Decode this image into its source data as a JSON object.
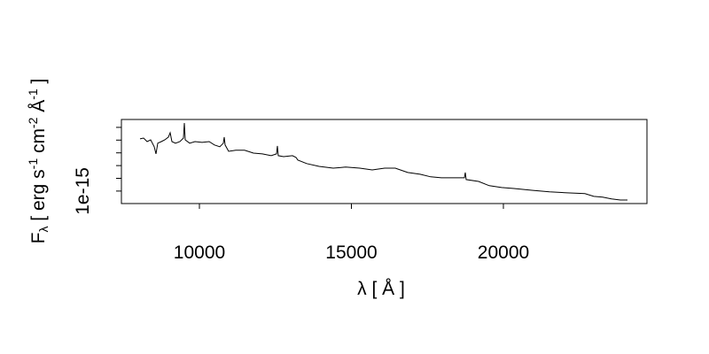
{
  "chart_data": {
    "type": "line",
    "xlabel": "λ [ Å ]",
    "ylabel": [
      "F",
      "λ",
      " [ erg s",
      "-1",
      " cm",
      "-2",
      " Å",
      "-1",
      " ]"
    ],
    "color": "#000000",
    "x": [
      8047,
      8163,
      8280,
      8396,
      8513,
      8571,
      8630,
      8746,
      8863,
      8980,
      9038,
      9096,
      9213,
      9359,
      9475,
      9504,
      9534,
      9679,
      9854,
      10087,
      10321,
      10496,
      10671,
      10787,
      10816,
      10845,
      10962,
      11195,
      11487,
      11778,
      12070,
      12361,
      12536,
      12566,
      12595,
      12770,
      13061,
      13178,
      13237,
      13528,
      13936,
      14402,
      14811,
      15277,
      15685,
      16093,
      16443,
      16851,
      17260,
      17609,
      17959,
      18601,
      18717,
      18747,
      18776,
      19184,
      19534,
      19942,
      20350,
      20933,
      21516,
      22099,
      22682,
      22974,
      23266,
      23557,
      23849,
      24082
    ],
    "values": [
      3.05e-15,
      3.08e-15,
      2.94e-15,
      3.01e-15,
      2.74e-15,
      2.46e-15,
      2.88e-15,
      2.94e-15,
      3.01e-15,
      3.12e-15,
      3.29e-15,
      2.94e-15,
      2.88e-15,
      2.94e-15,
      3.08e-15,
      3.67e-15,
      3.01e-15,
      2.88e-15,
      2.94e-15,
      2.91e-15,
      2.94e-15,
      2.81e-15,
      2.74e-15,
      2.88e-15,
      3.12e-15,
      2.81e-15,
      2.56e-15,
      2.6e-15,
      2.6e-15,
      2.49e-15,
      2.46e-15,
      2.39e-15,
      2.46e-15,
      2.77e-15,
      2.39e-15,
      2.35e-15,
      2.39e-15,
      2.32e-15,
      2.22e-15,
      2.08e-15,
      1.97e-15,
      1.9e-15,
      1.94e-15,
      1.9e-15,
      1.83e-15,
      1.9e-15,
      1.9e-15,
      1.73e-15,
      1.66e-15,
      1.56e-15,
      1.52e-15,
      1.52e-15,
      1.52e-15,
      1.73e-15,
      1.45e-15,
      1.38e-15,
      1.21e-15,
      1.14e-15,
      1.1e-15,
      1.03e-15,
      9.7e-16,
      9.3e-16,
      9e-16,
      7.9e-16,
      7.6e-16,
      6.9e-16,
      6.5e-16,
      6.5e-16
    ],
    "xlim": [
      7434,
      24723
    ],
    "xticks": [
      10000,
      15000,
      20000
    ],
    "ylim": [
      5.1e-16,
      3.81e-15
    ],
    "yticks": [
      {
        "value": 1e-15,
        "label": "1e-15"
      },
      {
        "value": 1.5e-15,
        "label": null
      },
      {
        "value": 2e-15,
        "label": null
      },
      {
        "value": 2.5e-15,
        "label": null
      },
      {
        "value": 3e-15,
        "label": null
      },
      {
        "value": 3.5e-15,
        "label": null
      }
    ]
  }
}
